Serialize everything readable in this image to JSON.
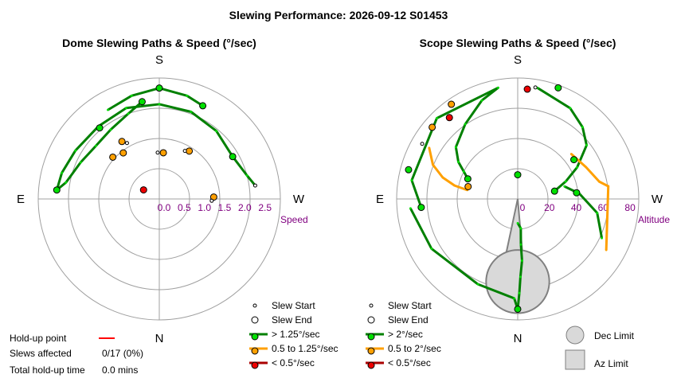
{
  "title": "Slewing Performance: 2026-09-12 S01453",
  "chart_data": [
    {
      "type": "polar",
      "title": "Dome Slewing Paths & Speed (°/sec)",
      "compass": {
        "top": "S",
        "bottom": "N",
        "left": "E",
        "right": "W"
      },
      "radial_label": "Speed",
      "radial_ticks": [
        "2.5",
        "2.0",
        "1.5",
        "1.0",
        "0.5",
        "0.0"
      ],
      "radial_range": [
        3.0,
        0.0
      ],
      "grid": true,
      "legend": {
        "slew_start": "Slew Start",
        "slew_end": "Slew End",
        "fast": "> 1.25°/sec",
        "medium": "0.5 to 1.25°/sec",
        "slow": "< 0.5°/sec"
      },
      "paths": [
        {
          "speed_class": "fast",
          "points": [
            {
              "az": 170,
              "speed": 2.45
            },
            {
              "az": 160,
              "speed": 2.25
            },
            {
              "az": 145,
              "speed": 2.1
            },
            {
              "az": 130,
              "speed": 2.05
            },
            {
              "az": 115,
              "speed": 2.15
            },
            {
              "az": 100,
              "speed": 2.35
            },
            {
              "az": 95,
              "speed": 2.55
            },
            {
              "az": 105,
              "speed": 2.5
            },
            {
              "az": 120,
              "speed": 2.4
            },
            {
              "az": 140,
              "speed": 2.35
            },
            {
              "az": 160,
              "speed": 2.4
            },
            {
              "az": 180,
              "speed": 2.35
            },
            {
              "az": 200,
              "speed": 2.3
            },
            {
              "az": 220,
              "speed": 2.2
            },
            {
              "az": 240,
              "speed": 2.1
            },
            {
              "az": 255,
              "speed": 2.25
            },
            {
              "az": 262,
              "speed": 2.4
            }
          ]
        },
        {
          "speed_class": "fast",
          "points": [
            {
              "az": 205,
              "speed": 2.55
            },
            {
              "az": 195,
              "speed": 2.65
            },
            {
              "az": 180,
              "speed": 2.75
            },
            {
              "az": 165,
              "speed": 2.65
            },
            {
              "az": 150,
              "speed": 2.55
            }
          ]
        }
      ],
      "markers": [
        {
          "kind": "start",
          "speed_class": "fast",
          "az": 262,
          "speed": 2.4
        },
        {
          "kind": "end",
          "speed_class": "fast",
          "az": 95,
          "speed": 2.55
        },
        {
          "kind": "end",
          "speed_class": "fast",
          "az": 140,
          "speed": 2.3
        },
        {
          "kind": "end",
          "speed_class": "fast",
          "az": 170,
          "speed": 2.45
        },
        {
          "kind": "end",
          "speed_class": "fast",
          "az": 205,
          "speed": 2.55
        },
        {
          "kind": "end",
          "speed_class": "fast",
          "az": 240,
          "speed": 2.1
        },
        {
          "kind": "end",
          "speed_class": "fast",
          "az": 180,
          "speed": 2.75
        },
        {
          "kind": "end",
          "speed_class": "medium",
          "az": 185,
          "speed": 1.15
        },
        {
          "kind": "start",
          "speed_class": "medium",
          "az": 178,
          "speed": 1.15
        },
        {
          "kind": "end",
          "speed_class": "medium",
          "az": 212,
          "speed": 1.4
        },
        {
          "kind": "start",
          "speed_class": "medium",
          "az": 208,
          "speed": 1.35
        },
        {
          "kind": "end",
          "speed_class": "medium",
          "az": 268,
          "speed": 1.35
        },
        {
          "kind": "start",
          "speed_class": "medium",
          "az": 272,
          "speed": 1.3
        },
        {
          "kind": "end",
          "speed_class": "medium",
          "az": 142,
          "speed": 1.45
        },
        {
          "kind": "end",
          "speed_class": "medium",
          "az": 132,
          "speed": 1.55
        },
        {
          "kind": "start",
          "speed_class": "medium",
          "az": 150,
          "speed": 1.6
        },
        {
          "kind": "end",
          "speed_class": "medium",
          "az": 147,
          "speed": 1.7
        },
        {
          "kind": "end",
          "speed_class": "slow",
          "az": 120,
          "speed": 0.45
        }
      ]
    },
    {
      "type": "polar",
      "title": "Scope Slewing Paths & Speed (°/sec)",
      "compass": {
        "top": "S",
        "bottom": "N",
        "left": "E",
        "right": "W"
      },
      "radial_label": "Altitude",
      "radial_ticks": [
        "80",
        "60",
        "40",
        "20",
        "0"
      ],
      "radial_range": [
        90,
        0
      ],
      "grid": true,
      "legend": {
        "slew_start": "Slew Start",
        "slew_end": "Slew End",
        "fast": "> 2°/sec",
        "medium": "0.5 to 2°/sec",
        "slow": "< 0.5°/sec",
        "dec_limit": "Dec Limit",
        "az_limit": "Az Limit"
      },
      "limits": {
        "dec_limit": {
          "az": 0,
          "center_alt": 61.5,
          "radius_deg": 23.5
        },
        "az_limit": {
          "az_from": 355,
          "az_to": 12,
          "alt_from": 48,
          "alt_to": 0
        }
      },
      "paths": [
        {
          "speed_class": "fast",
          "points": [
            {
              "az": 0,
              "alt": 18
            },
            {
              "az": 354,
              "alt": 22
            },
            {
              "az": 356,
              "alt": 34
            },
            {
              "az": 356,
              "alt": 46
            },
            {
              "az": 358,
              "alt": 58
            },
            {
              "az": 359,
              "alt": 70
            },
            {
              "az": 0,
              "alt": 82
            }
          ]
        },
        {
          "speed_class": "fast",
          "points": [
            {
              "az": 0,
              "alt": 82
            },
            {
              "az": 2,
              "alt": 74
            },
            {
              "az": 25,
              "alt": 70
            },
            {
              "az": 60,
              "alt": 74
            },
            {
              "az": 85,
              "alt": 80
            }
          ]
        },
        {
          "speed_class": "fast",
          "points": [
            {
              "az": 295,
              "alt": 69
            },
            {
              "az": 280,
              "alt": 60
            },
            {
              "az": 265,
              "alt": 46
            },
            {
              "az": 255,
              "alt": 36
            }
          ]
        },
        {
          "speed_class": "fast",
          "points": [
            {
              "az": 258,
              "alt": 28
            },
            {
              "az": 250,
              "alt": 38
            },
            {
              "az": 242,
              "alt": 50
            },
            {
              "az": 232,
              "alt": 65
            },
            {
              "az": 222,
              "alt": 72
            },
            {
              "az": 210,
              "alt": 78
            },
            {
              "az": 190,
              "alt": 84
            }
          ]
        },
        {
          "speed_class": "fast",
          "points": [
            {
              "az": 112,
              "alt": 40
            },
            {
              "az": 117,
              "alt": 45
            },
            {
              "az": 122,
              "alt": 52
            },
            {
              "az": 130,
              "alt": 60
            },
            {
              "az": 145,
              "alt": 68
            },
            {
              "az": 160,
              "alt": 78
            },
            {
              "az": 170,
              "alt": 84
            },
            {
              "az": 135,
              "alt": 85
            },
            {
              "az": 100,
              "alt": 80
            },
            {
              "az": 85,
              "alt": 72
            }
          ]
        },
        {
          "speed_class": "medium",
          "points": [
            {
              "az": 100,
              "alt": 38
            },
            {
              "az": 102,
              "alt": 48
            },
            {
              "az": 106,
              "alt": 58
            },
            {
              "az": 112,
              "alt": 68
            },
            {
              "az": 120,
              "alt": 76
            }
          ]
        },
        {
          "speed_class": "medium",
          "points": [
            {
              "az": 230,
              "alt": 52
            },
            {
              "az": 245,
              "alt": 56
            },
            {
              "az": 258,
              "alt": 62
            },
            {
              "az": 262,
              "alt": 68
            },
            {
              "az": 300,
              "alt": 76
            }
          ]
        }
      ],
      "markers": [
        {
          "kind": "end",
          "speed_class": "fast",
          "az": 180,
          "alt": 18
        },
        {
          "kind": "end",
          "speed_class": "fast",
          "az": 235,
          "alt": 51
        },
        {
          "kind": "start",
          "speed_class": "fast",
          "az": 189,
          "alt": 84
        },
        {
          "kind": "end",
          "speed_class": "fast",
          "az": 112,
          "alt": 40
        },
        {
          "kind": "end",
          "speed_class": "fast",
          "az": 85,
          "alt": 72
        },
        {
          "kind": "end",
          "speed_class": "fast",
          "az": 258,
          "alt": 28
        },
        {
          "kind": "end",
          "speed_class": "fast",
          "az": 200,
          "alt": 88
        },
        {
          "kind": "end",
          "speed_class": "fast",
          "az": 0,
          "alt": 82
        },
        {
          "kind": "end",
          "speed_class": "fast",
          "az": 105,
          "alt": 84
        },
        {
          "kind": "end",
          "speed_class": "fast",
          "az": 264,
          "alt": 44
        },
        {
          "kind": "end",
          "speed_class": "medium",
          "az": 104,
          "alt": 38
        },
        {
          "kind": "end",
          "speed_class": "medium",
          "az": 130,
          "alt": 83
        },
        {
          "kind": "start",
          "speed_class": "medium",
          "az": 120,
          "alt": 82
        },
        {
          "kind": "end",
          "speed_class": "medium",
          "az": 145,
          "alt": 86
        },
        {
          "kind": "end",
          "speed_class": "slow",
          "az": 140,
          "alt": 79
        },
        {
          "kind": "end",
          "speed_class": "slow",
          "az": 185,
          "alt": 82
        }
      ]
    }
  ],
  "holdup": {
    "point_label": "Hold-up point",
    "slews_label": "Slews affected",
    "slews_value": "0/17 (0%)",
    "time_label": "Total hold-up time",
    "time_value": "0.0 mins",
    "line_color": "#ff0000"
  },
  "colors": {
    "fast": "#00e000",
    "fast_line": "#008000",
    "medium": "#ffa000",
    "medium_line": "#ffa000",
    "slow": "#ee0000",
    "slow_line": "#aa0000",
    "grid": "#a0a0a0",
    "limit_fill": "#d9d9d9",
    "limit_stroke": "#808080",
    "tick_label": "#800080"
  }
}
